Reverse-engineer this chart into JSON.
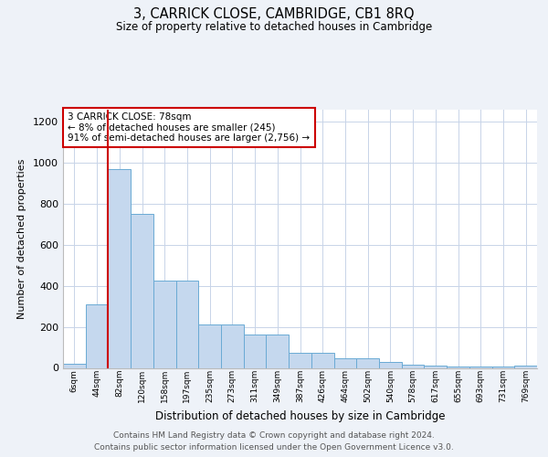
{
  "title1": "3, CARRICK CLOSE, CAMBRIDGE, CB1 8RQ",
  "title2": "Size of property relative to detached houses in Cambridge",
  "xlabel": "Distribution of detached houses by size in Cambridge",
  "ylabel": "Number of detached properties",
  "footer1": "Contains HM Land Registry data © Crown copyright and database right 2024.",
  "footer2": "Contains public sector information licensed under the Open Government Licence v3.0.",
  "annotation_line1": "3 CARRICK CLOSE: 78sqm",
  "annotation_line2": "← 8% of detached houses are smaller (245)",
  "annotation_line3": "91% of semi-detached houses are larger (2,756) →",
  "bar_color": "#c5d8ee",
  "bar_edge_color": "#6aaad4",
  "vline_color": "#cc0000",
  "annotation_box_edge": "#cc0000",
  "annotation_box_face": "#ffffff",
  "categories": [
    "6sqm",
    "44sqm",
    "82sqm",
    "120sqm",
    "158sqm",
    "197sqm",
    "235sqm",
    "273sqm",
    "311sqm",
    "349sqm",
    "387sqm",
    "426sqm",
    "464sqm",
    "502sqm",
    "540sqm",
    "578sqm",
    "617sqm",
    "655sqm",
    "693sqm",
    "731sqm",
    "769sqm"
  ],
  "values": [
    20,
    310,
    970,
    750,
    425,
    425,
    210,
    210,
    165,
    165,
    75,
    75,
    45,
    45,
    28,
    15,
    12,
    8,
    8,
    5,
    12
  ],
  "vline_x_index": 2,
  "ylim": [
    0,
    1260
  ],
  "yticks": [
    0,
    200,
    400,
    600,
    800,
    1000,
    1200
  ],
  "background_color": "#eef2f8",
  "plot_background": "#ffffff",
  "grid_color": "#c8d4e8"
}
